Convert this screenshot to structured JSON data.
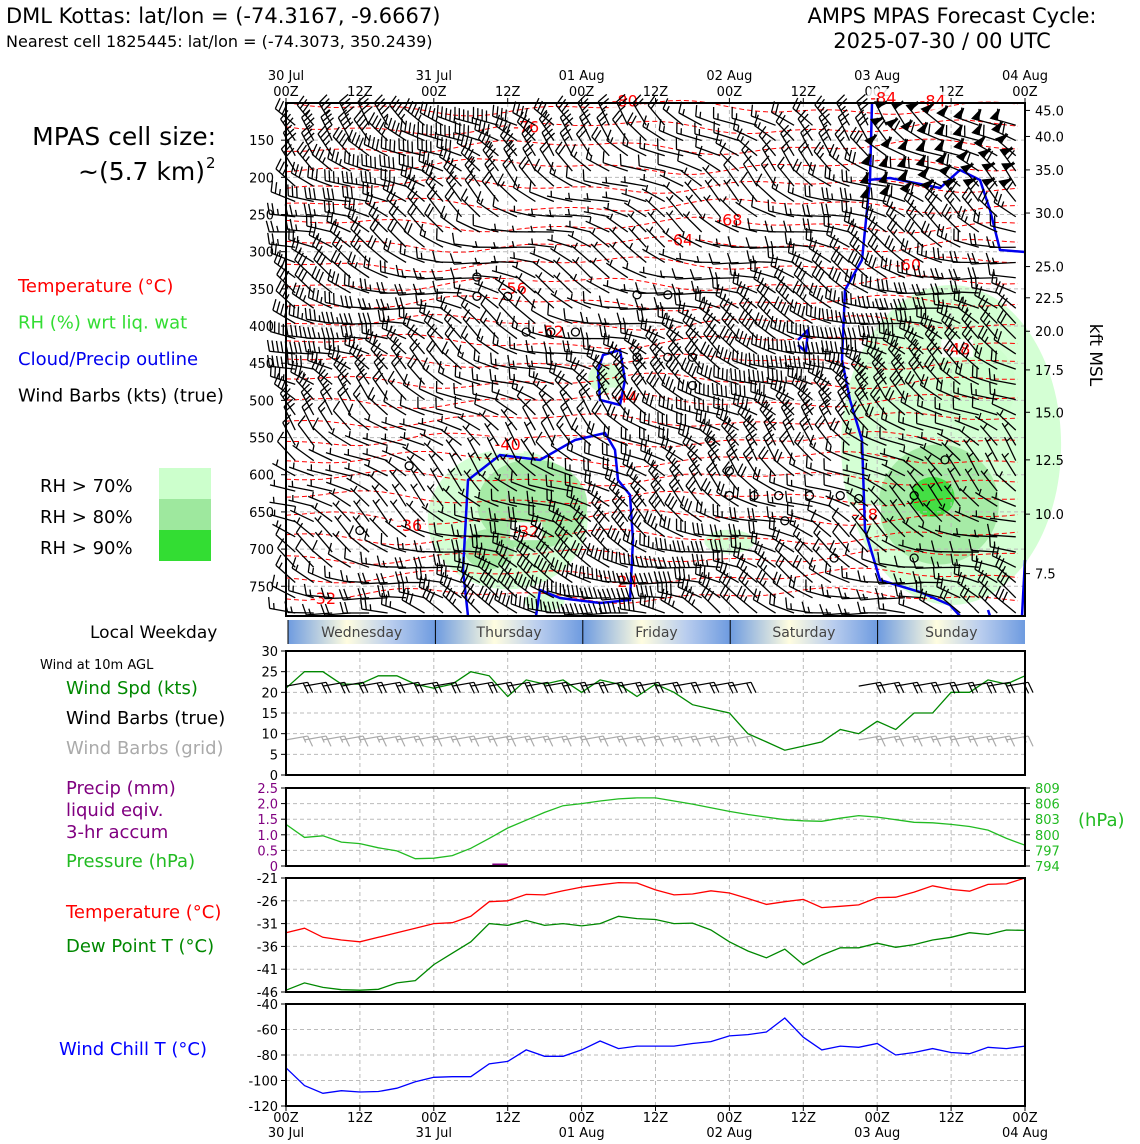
{
  "header": {
    "title_left": "DML Kottas: lat/lon = (-74.3167, -9.6667)",
    "subtitle_left": "Nearest cell 1825445: lat/lon = (-74.3073, 350.2439)",
    "title_right_1": "AMPS MPAS Forecast Cycle:",
    "title_right_2": "2025-07-30 / 00 UTC"
  },
  "side": {
    "cell_size_label": "MPAS cell size:",
    "cell_size_value": "~(5.7 km)",
    "cell_size_exp": "2",
    "legend": [
      {
        "text": "Temperature (°C)",
        "color": "#ff0000"
      },
      {
        "text": "RH (%) wrt liq. wat",
        "color": "#33dd33"
      },
      {
        "text": "Cloud/Precip outline",
        "color": "#0000ee"
      },
      {
        "text": "Wind Barbs (kts) (true)",
        "color": "#000000"
      }
    ],
    "rh_legend": [
      {
        "text": "RH > 70%",
        "color": "#ccffcc"
      },
      {
        "text": "RH > 80%",
        "color": "#9ee89e"
      },
      {
        "text": "RH > 90%",
        "color": "#33dd33"
      }
    ],
    "weekday_label": "Local Weekday",
    "wind10_title": "Wind at 10m AGL",
    "wind10_legend": [
      {
        "text": "Wind Spd (kts)",
        "color": "#008800"
      },
      {
        "text": "Wind Barbs (true)",
        "color": "#000000"
      },
      {
        "text": "Wind Barbs (grid)",
        "color": "#aaaaaa"
      }
    ],
    "precip_legend": [
      {
        "text": "Precip (mm)",
        "color": "#800080"
      },
      {
        "text": "liquid eqiv.",
        "color": "#800080"
      },
      {
        "text": "3-hr accum",
        "color": "#800080"
      },
      {
        "text": "Pressure (hPa)",
        "color": "#22bb22"
      }
    ],
    "temp_legend": [
      {
        "text": "Temperature (°C)",
        "color": "#ff0000"
      },
      {
        "text": "Dew Point T (°C)",
        "color": "#008800"
      }
    ],
    "windchill_legend": {
      "text": "Wind Chill T (°C)",
      "color": "#0000ff"
    }
  },
  "time_axis": {
    "top_labels": [
      [
        "30 Jul",
        "00Z"
      ],
      [
        "",
        "12Z"
      ],
      [
        "31 Jul",
        "00Z"
      ],
      [
        "",
        "12Z"
      ],
      [
        "01 Aug",
        "00Z"
      ],
      [
        "",
        "12Z"
      ],
      [
        "02 Aug",
        "00Z"
      ],
      [
        "",
        "12Z"
      ],
      [
        "03 Aug",
        "00Z"
      ],
      [
        "",
        "12Z"
      ],
      [
        "04 Aug",
        "00Z"
      ]
    ],
    "bottom_labels": [
      [
        "00Z",
        "30 Jul"
      ],
      [
        "12Z",
        ""
      ],
      [
        "00Z",
        "31 Jul"
      ],
      [
        "12Z",
        ""
      ],
      [
        "00Z",
        "01 Aug"
      ],
      [
        "12Z",
        ""
      ],
      [
        "00Z",
        "02 Aug"
      ],
      [
        "12Z",
        ""
      ],
      [
        "00Z",
        "03 Aug"
      ],
      [
        "12Z",
        ""
      ],
      [
        "00Z",
        "04 Aug"
      ]
    ]
  },
  "weekdays": [
    "Wednesday",
    "Thursday",
    "Friday",
    "Saturday",
    "Sunday"
  ],
  "chart_data": [
    {
      "type": "heatmap",
      "name": "vertical-profile",
      "x_hours": [
        0,
        120
      ],
      "pressure_ticks": [
        "150",
        "200",
        "250",
        "300",
        "350",
        "400",
        "450",
        "500",
        "550",
        "600",
        "650",
        "700",
        "750"
      ],
      "height_ticks": [
        "45.0",
        "40.0",
        "35.0",
        "30.0",
        "25.0",
        "22.5",
        "20.0",
        "17.5",
        "15.0",
        "12.5",
        "10.0",
        "7.5"
      ],
      "height_ticks_p": [
        110,
        145,
        190,
        248,
        320,
        362,
        407,
        459,
        516,
        580,
        653,
        733
      ],
      "ylabel_right": "kft MSL",
      "ylim_hPa": [
        100,
        790
      ],
      "temperature_contours": [
        {
          "label": "-80",
          "h": 55,
          "p": 105
        },
        {
          "label": "-84",
          "h": 97,
          "p": 101
        },
        {
          "label": "-84",
          "h": 105,
          "p": 105
        },
        {
          "label": "-76",
          "h": 39,
          "p": 140
        },
        {
          "label": "-68",
          "h": 72,
          "p": 265
        },
        {
          "label": "-64",
          "h": 64,
          "p": 292
        },
        {
          "label": "-60",
          "h": 101,
          "p": 325
        },
        {
          "label": "-56",
          "h": 37,
          "p": 357
        },
        {
          "label": "-52",
          "h": 43,
          "p": 415
        },
        {
          "label": "-48",
          "h": 109,
          "p": 438
        },
        {
          "label": "-44",
          "h": 55,
          "p": 503
        },
        {
          "label": "-40",
          "h": 36,
          "p": 567
        },
        {
          "label": "-36",
          "h": 20,
          "p": 676
        },
        {
          "label": "-32",
          "h": 39,
          "p": 684
        },
        {
          "label": "-28",
          "h": 94,
          "p": 661
        },
        {
          "label": "-24",
          "h": 55,
          "p": 751
        },
        {
          "label": "-32",
          "h": 6,
          "p": 774
        }
      ]
    },
    {
      "type": "line",
      "name": "wind-10m",
      "ylim": [
        0,
        30
      ],
      "yticks": [
        "30",
        "25",
        "20",
        "15",
        "10",
        "5",
        "0"
      ],
      "x": [
        0,
        3,
        6,
        9,
        12,
        15,
        18,
        21,
        24,
        27,
        30,
        33,
        36,
        39,
        42,
        45,
        48,
        51,
        54,
        57,
        60,
        63,
        66,
        69,
        72,
        75,
        78,
        81,
        84,
        87,
        90,
        93,
        96,
        99,
        102,
        105,
        108,
        111,
        114,
        117,
        120
      ],
      "series": [
        {
          "name": "Wind Spd (kts)",
          "color": "#008800",
          "values": [
            21,
            25,
            25,
            22,
            22,
            24,
            24,
            22,
            21,
            22,
            25,
            24,
            19,
            23,
            22,
            23,
            20,
            23,
            22,
            19,
            22,
            20,
            17,
            16,
            15,
            10,
            8,
            6,
            7,
            8,
            11,
            10,
            13,
            11,
            15,
            15,
            20,
            20,
            23,
            22,
            24
          ]
        }
      ]
    },
    {
      "type": "line",
      "name": "precip-pressure",
      "ylim_left": [
        0,
        2.5
      ],
      "yticks_left": [
        "2.5",
        "2.0",
        "1.5",
        "1.0",
        "0.5",
        "0"
      ],
      "ylim_right": [
        794,
        809
      ],
      "yticks_right": [
        "809",
        "806",
        "803",
        "800",
        "797",
        "794"
      ],
      "ylabel_right": "(hPa)",
      "x": [
        0,
        3,
        6,
        9,
        12,
        15,
        18,
        21,
        24,
        27,
        30,
        33,
        36,
        39,
        42,
        45,
        48,
        51,
        54,
        57,
        60,
        63,
        66,
        69,
        72,
        75,
        78,
        81,
        84,
        87,
        90,
        93,
        96,
        99,
        102,
        105,
        108,
        111,
        114,
        117,
        120
      ],
      "series": [
        {
          "name": "Pressure (hPa)",
          "color": "#22bb22",
          "axis": "right",
          "values": [
            802,
            799.5,
            799.8,
            798.6,
            798.3,
            797.5,
            796.9,
            795.4,
            795.5,
            796,
            797.4,
            799.3,
            801.3,
            802.8,
            804.3,
            805.6,
            806,
            806.5,
            806.9,
            807.1,
            807.1,
            806.5,
            805.9,
            805.2,
            804.5,
            803.9,
            803.4,
            802.9,
            802.7,
            802.6,
            803.2,
            803.7,
            803.4,
            802.9,
            802.4,
            802.3,
            802,
            801.6,
            800.9,
            799.3,
            798
          ]
        },
        {
          "name": "Precip (mm)",
          "color": "#800080",
          "axis": "left",
          "values": [
            0,
            0,
            0,
            0,
            0,
            0,
            0,
            0,
            0,
            0,
            0,
            0,
            0,
            0,
            0,
            0,
            0,
            0,
            0,
            0,
            0,
            0,
            0,
            0,
            0,
            0,
            0,
            0,
            0,
            0,
            0,
            0,
            0,
            0,
            0,
            0,
            0,
            0,
            0,
            0,
            0
          ]
        }
      ]
    },
    {
      "type": "line",
      "name": "temperature-dewpoint",
      "ylim": [
        -46,
        -21
      ],
      "yticks": [
        "-21",
        "-26",
        "-31",
        "-36",
        "-41",
        "-46"
      ],
      "x": [
        0,
        3,
        6,
        9,
        12,
        15,
        18,
        21,
        24,
        27,
        30,
        33,
        36,
        39,
        42,
        45,
        48,
        51,
        54,
        57,
        60,
        63,
        66,
        69,
        72,
        75,
        78,
        81,
        84,
        87,
        90,
        93,
        96,
        99,
        102,
        105,
        108,
        111,
        114,
        117,
        120
      ],
      "series": [
        {
          "name": "Temperature (°C)",
          "color": "#ff0000",
          "values": [
            -33,
            -32,
            -34,
            -34.6,
            -35,
            -34,
            -33,
            -32,
            -31,
            -30.8,
            -29.4,
            -26.2,
            -26,
            -24.6,
            -24.7,
            -23.8,
            -23,
            -22.5,
            -22,
            -22.1,
            -23.6,
            -24.7,
            -24.5,
            -23.8,
            -24.3,
            -25.5,
            -26.8,
            -26.2,
            -25.7,
            -27.5,
            -27.2,
            -26.9,
            -25.3,
            -25.2,
            -24.1,
            -22.7,
            -23.5,
            -23.9,
            -22.4,
            -22.3,
            -21
          ]
        },
        {
          "name": "Dew Point T (°C)",
          "color": "#008800",
          "values": [
            -45.6,
            -44,
            -45,
            -45.5,
            -45.6,
            -45.4,
            -44,
            -43.5,
            -40,
            -37.5,
            -35,
            -31,
            -31.4,
            -30.3,
            -31.4,
            -31,
            -31.5,
            -31,
            -29.4,
            -29.9,
            -30.1,
            -31,
            -30.9,
            -32.4,
            -35,
            -37,
            -38.5,
            -36.6,
            -40,
            -37.9,
            -36.3,
            -36.3,
            -35.3,
            -36.2,
            -35.6,
            -34.6,
            -34,
            -33,
            -33.4,
            -32.4,
            -32.5
          ]
        }
      ]
    },
    {
      "type": "line",
      "name": "wind-chill",
      "ylim": [
        -120,
        -40
      ],
      "yticks": [
        "-40",
        "-60",
        "-80",
        "-100",
        "-120"
      ],
      "x": [
        0,
        3,
        6,
        9,
        12,
        15,
        18,
        21,
        24,
        27,
        30,
        33,
        36,
        39,
        42,
        45,
        48,
        51,
        54,
        57,
        60,
        63,
        66,
        69,
        72,
        75,
        78,
        81,
        84,
        87,
        90,
        93,
        96,
        99,
        102,
        105,
        108,
        111,
        114,
        117,
        120
      ],
      "series": [
        {
          "name": "Wind Chill T (°C)",
          "color": "#0000ff",
          "values": [
            -90,
            -104,
            -110,
            -108,
            -109,
            -108.6,
            -106,
            -101,
            -97.5,
            -97,
            -97,
            -87,
            -85,
            -76,
            -81,
            -81,
            -76,
            -69,
            -75,
            -73,
            -73,
            -73,
            -71,
            -69.5,
            -65,
            -64,
            -62,
            -51,
            -66,
            -76,
            -73,
            -74,
            -71,
            -80,
            -78,
            -75,
            -78,
            -79,
            -74,
            -75,
            -73
          ]
        }
      ]
    }
  ]
}
